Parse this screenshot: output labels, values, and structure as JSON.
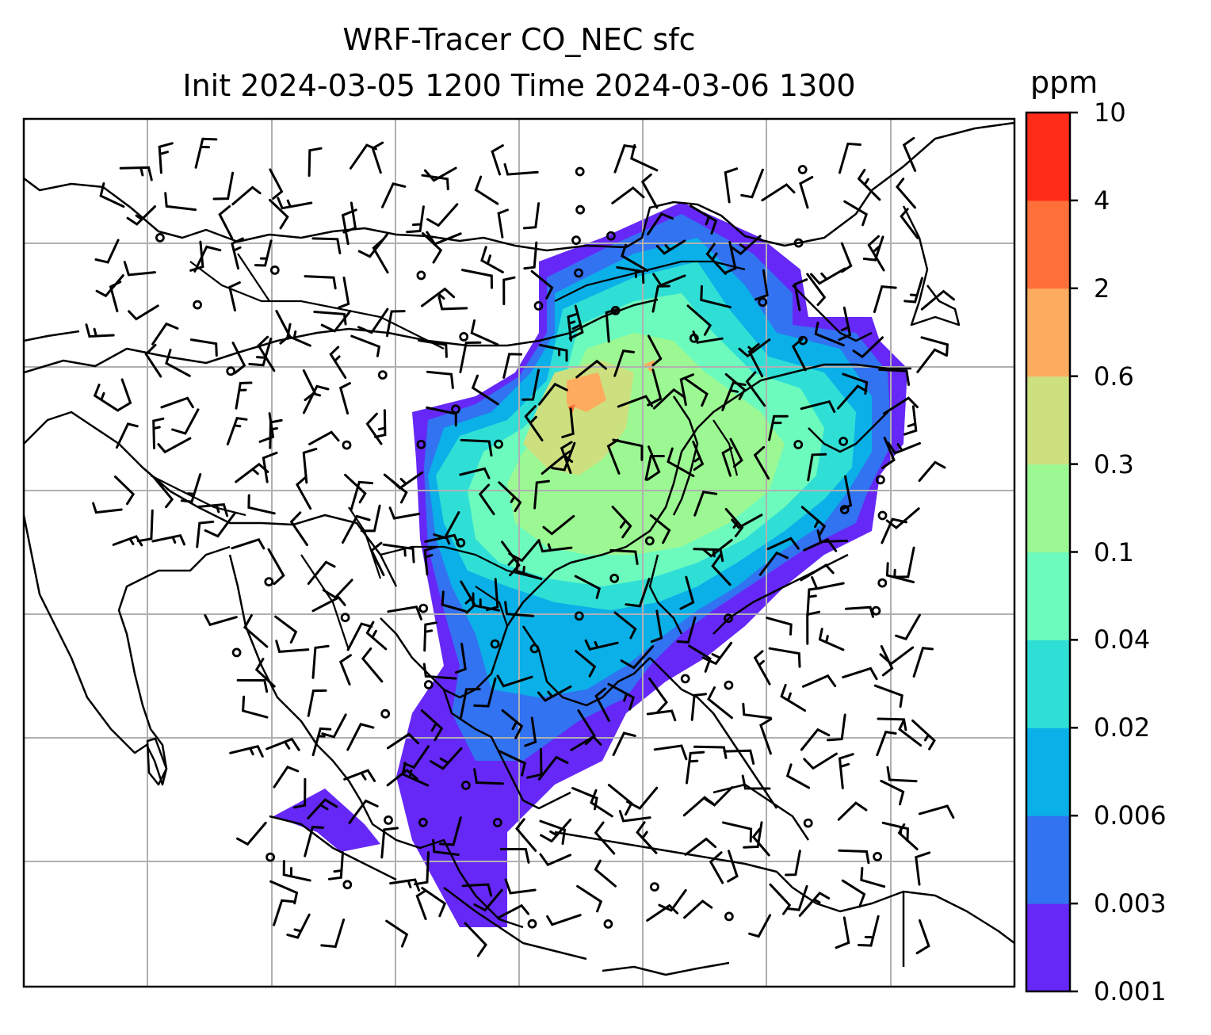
{
  "title": {
    "line1": "WRF-Tracer CO_NEC sfc",
    "line2": "Init 2024-03-05 1200 Time 2024-03-06 1300"
  },
  "colorbar": {
    "unit": "ppm",
    "levels": [
      "0.001",
      "0.003",
      "0.006",
      "0.02",
      "0.04",
      "0.1",
      "0.3",
      "0.6",
      "2",
      "4",
      "10"
    ],
    "colors": [
      "#6628f7",
      "#3173f1",
      "#0ab0e7",
      "#2fdfd6",
      "#6cfbbd",
      "#9cf893",
      "#cde080",
      "#fdac5f",
      "#ff6f3a",
      "#ff2c1a"
    ]
  },
  "map": {
    "region": "East and Southeast Asia",
    "field": "CO_NEC surface tracer concentration",
    "overlay": "wind barbs and calm-wind circles",
    "gridlines": true,
    "coastlines": true,
    "country_borders": true
  }
}
